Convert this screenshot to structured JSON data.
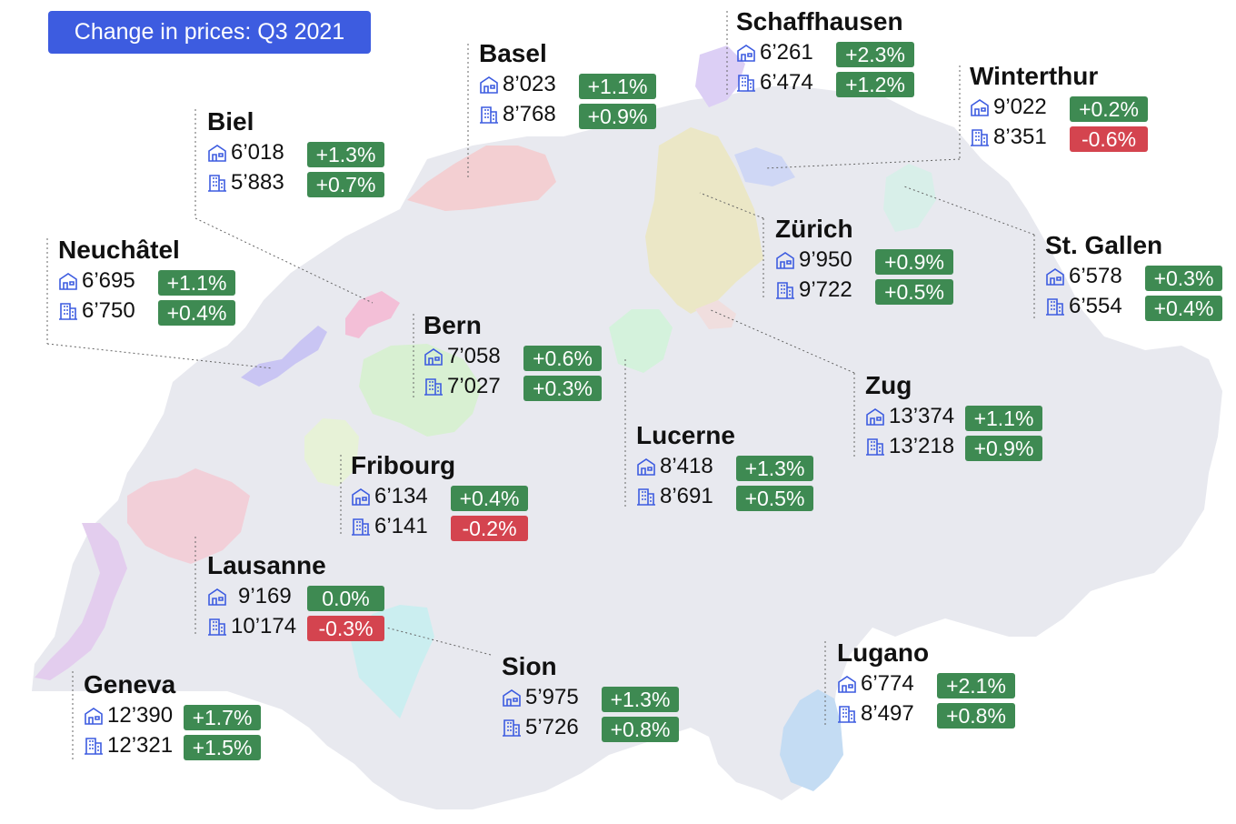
{
  "title": "Change in prices: Q3 2021",
  "colors": {
    "title_bg": "#3d5ce0",
    "positive": "#3e8a52",
    "negative": "#d4444f",
    "country": "#e8e9ef",
    "icon": "#3d5ce0"
  },
  "icons": {
    "house": "house-icon",
    "apartment": "apartment-building-icon"
  },
  "cities": {
    "schaffhausen": {
      "name": "Schaffhausen",
      "house_price": "6’261",
      "house_change": "+2.3%",
      "apt_price": "6’474",
      "apt_change": "+1.2%"
    },
    "basel": {
      "name": "Basel",
      "house_price": "8’023",
      "house_change": "+1.1%",
      "apt_price": "8’768",
      "apt_change": "+0.9%"
    },
    "winterthur": {
      "name": "Winterthur",
      "house_price": "9’022",
      "house_change": "+0.2%",
      "apt_price": "8’351",
      "apt_change": "-0.6%"
    },
    "biel": {
      "name": "Biel",
      "house_price": "6’018",
      "house_change": "+1.3%",
      "apt_price": "5’883",
      "apt_change": "+0.7%"
    },
    "neuchatel": {
      "name": "Neuchâtel",
      "house_price": "6’695",
      "house_change": "+1.1%",
      "apt_price": "6’750",
      "apt_change": "+0.4%"
    },
    "zurich": {
      "name": "Zürich",
      "house_price": "9’950",
      "house_change": "+0.9%",
      "apt_price": "9’722",
      "apt_change": "+0.5%"
    },
    "st_gallen": {
      "name": "St. Gallen",
      "house_price": "6’578",
      "house_change": "+0.3%",
      "apt_price": "6’554",
      "apt_change": "+0.4%"
    },
    "bern": {
      "name": "Bern",
      "house_price": "7’058",
      "house_change": "+0.6%",
      "apt_price": "7’027",
      "apt_change": "+0.3%"
    },
    "zug": {
      "name": "Zug",
      "house_price": "13’374",
      "house_change": "+1.1%",
      "apt_price": "13’218",
      "apt_change": "+0.9%"
    },
    "lucerne": {
      "name": "Lucerne",
      "house_price": "8’418",
      "house_change": "+1.3%",
      "apt_price": "8’691",
      "apt_change": "+0.5%"
    },
    "fribourg": {
      "name": "Fribourg",
      "house_price": "6’134",
      "house_change": "+0.4%",
      "apt_price": "6’141",
      "apt_change": "-0.2%"
    },
    "lausanne": {
      "name": "Lausanne",
      "house_price": "9’169",
      "house_change": "0.0%",
      "apt_price": "10’174",
      "apt_change": "-0.3%"
    },
    "sion": {
      "name": "Sion",
      "house_price": "5’975",
      "house_change": "+1.3%",
      "apt_price": "5’726",
      "apt_change": "+0.8%"
    },
    "lugano": {
      "name": "Lugano",
      "house_price": "6’774",
      "house_change": "+2.1%",
      "apt_price": "8’497",
      "apt_change": "+0.8%"
    },
    "geneva": {
      "name": "Geneva",
      "house_price": "12’390",
      "house_change": "+1.7%",
      "apt_price": "12’321",
      "apt_change": "+1.5%"
    }
  }
}
